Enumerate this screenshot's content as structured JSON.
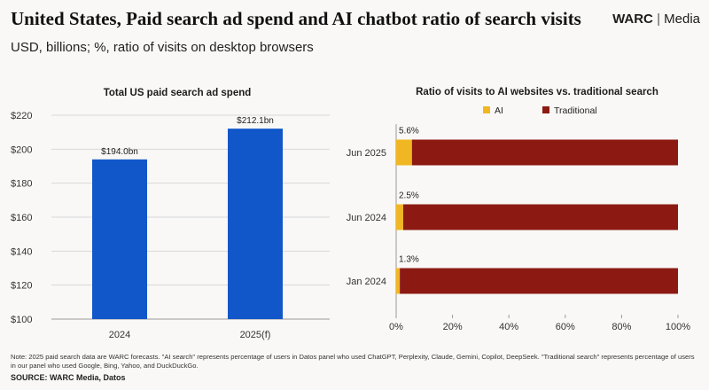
{
  "header": {
    "title": "United States, Paid search ad spend and AI chatbot ratio of search visits",
    "brand_name": "WARC",
    "brand_separator": "|",
    "brand_suffix": "Media",
    "subtitle": "USD, billions; %, ratio of visits on desktop browsers"
  },
  "chart_data": [
    {
      "type": "bar",
      "title": "Total US paid search ad spend",
      "categories": [
        "2024",
        "2025(f)"
      ],
      "values": [
        194.0,
        212.1
      ],
      "data_labels": [
        "$194.0bn",
        "$212.1bn"
      ],
      "yticks": [
        "$100",
        "$120",
        "$140",
        "$160",
        "$180",
        "$200",
        "$220"
      ],
      "ylim": [
        100,
        220
      ],
      "xlabel": "",
      "ylabel": "",
      "color": "#1257c9"
    },
    {
      "type": "bar",
      "orientation": "horizontal",
      "stacked": true,
      "title": "Ratio of visits to AI websites vs. traditional search",
      "categories": [
        "Jun 2025",
        "Jun 2024",
        "Jan 2024"
      ],
      "series": [
        {
          "name": "AI",
          "values": [
            5.6,
            2.5,
            1.3
          ],
          "color": "#f0b723"
        },
        {
          "name": "Traditional",
          "values": [
            94.4,
            97.5,
            98.7
          ],
          "color": "#8c1a13"
        }
      ],
      "data_labels": [
        "5.6%",
        "2.5%",
        "1.3%"
      ],
      "xticks": [
        "0%",
        "20%",
        "40%",
        "60%",
        "80%",
        "100%"
      ],
      "xlim": [
        0,
        100
      ],
      "legend": "top-center"
    }
  ],
  "footer": {
    "note": "Note: 2025 paid search data are WARC forecasts. \"AI search\" represents percentage of users in Datos panel who used ChatGPT, Perplexity, Claude, Gemini, Copilot, DeepSeek. \"Traditional search\" represents percentage of users in our panel who used Google, Bing, Yahoo, and DuckDuckGo.",
    "source": "SOURCE: WARC Media, Datos"
  }
}
